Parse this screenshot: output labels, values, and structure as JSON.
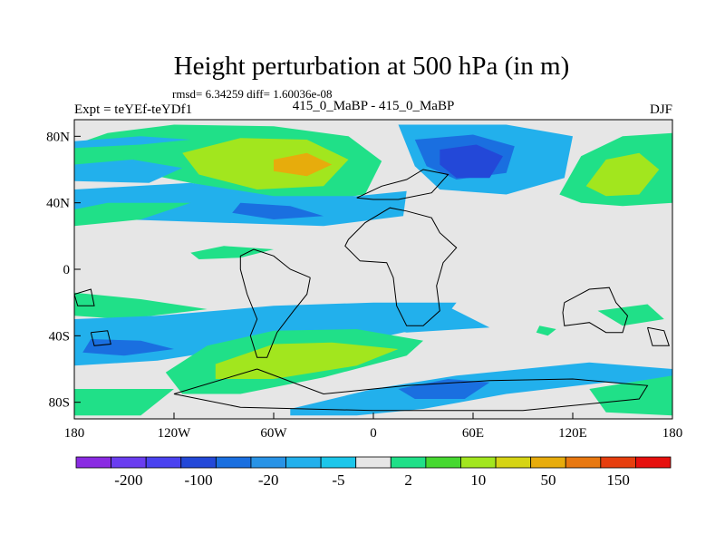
{
  "chart_data": {
    "type": "heatmap",
    "title": "Height perturbation at 500 hPa (in m)",
    "subtitle": "rmsd= 6.34259  diff= 1.60036e-08",
    "left_label": "Expt = teYEf-teYDf1",
    "center_label": "415_0_MaBP - 415_0_MaBP",
    "right_label": "DJF",
    "xlim": [
      -180,
      180
    ],
    "ylim": [
      -90,
      90
    ],
    "x_ticks": [
      {
        "value": -180,
        "label": "180"
      },
      {
        "value": -120,
        "label": "120W"
      },
      {
        "value": -60,
        "label": "60W"
      },
      {
        "value": 0,
        "label": "0"
      },
      {
        "value": 60,
        "label": "60E"
      },
      {
        "value": 120,
        "label": "120E"
      },
      {
        "value": 180,
        "label": "180"
      }
    ],
    "y_ticks": [
      {
        "value": 80,
        "label": "80N"
      },
      {
        "value": 40,
        "label": "40N"
      },
      {
        "value": 0,
        "label": "0"
      },
      {
        "value": -40,
        "label": "40S"
      },
      {
        "value": -80,
        "label": "80S"
      }
    ],
    "colorbar": {
      "colors": [
        "#8a2be2",
        "#6a3df0",
        "#4a42f0",
        "#2348d8",
        "#1a6fe0",
        "#2893e6",
        "#22b0ec",
        "#1cc6ea",
        "#e6e6e6",
        "#20e088",
        "#46d830",
        "#a2e61e",
        "#d6d414",
        "#e7ac0c",
        "#e87810",
        "#e63e0e",
        "#e6100e"
      ],
      "labels": [
        "-200",
        "-100",
        "-20",
        "-5",
        "2",
        "10",
        "50",
        "150"
      ]
    },
    "regions": [
      {
        "level": 10,
        "points": [
          [
            -180,
            75
          ],
          [
            -160,
            82
          ],
          [
            -120,
            87
          ],
          [
            -60,
            86
          ],
          [
            -15,
            80
          ],
          [
            5,
            65
          ],
          [
            -5,
            45
          ],
          [
            -40,
            40
          ],
          [
            -90,
            48
          ],
          [
            -140,
            58
          ],
          [
            -180,
            60
          ]
        ]
      },
      {
        "level": 50,
        "points": [
          [
            -115,
            70
          ],
          [
            -80,
            79
          ],
          [
            -40,
            78
          ],
          [
            -15,
            66
          ],
          [
            -30,
            50
          ],
          [
            -70,
            48
          ],
          [
            -105,
            57
          ]
        ]
      },
      {
        "level": 150,
        "points": [
          [
            -60,
            66
          ],
          [
            -40,
            70
          ],
          [
            -25,
            63
          ],
          [
            -40,
            56
          ],
          [
            -60,
            59
          ]
        ]
      },
      {
        "level": -5,
        "points": [
          [
            -180,
            63
          ],
          [
            -145,
            66
          ],
          [
            -115,
            61
          ],
          [
            -135,
            52
          ],
          [
            -180,
            53
          ]
        ]
      },
      {
        "level": -5,
        "points": [
          [
            -180,
            48
          ],
          [
            -110,
            52
          ],
          [
            -60,
            44
          ],
          [
            -10,
            44
          ],
          [
            20,
            47
          ],
          [
            18,
            32
          ],
          [
            -30,
            26
          ],
          [
            -90,
            28
          ],
          [
            -150,
            30
          ],
          [
            -180,
            35
          ]
        ]
      },
      {
        "level": -20,
        "points": [
          [
            -80,
            40
          ],
          [
            -50,
            38
          ],
          [
            -30,
            32
          ],
          [
            -60,
            30
          ],
          [
            -85,
            34
          ]
        ]
      },
      {
        "level": 10,
        "points": [
          [
            -180,
            36
          ],
          [
            -160,
            40
          ],
          [
            -110,
            40
          ],
          [
            -140,
            30
          ],
          [
            -180,
            26
          ]
        ]
      },
      {
        "level": -5,
        "points": [
          [
            15,
            87
          ],
          [
            80,
            87
          ],
          [
            120,
            80
          ],
          [
            115,
            55
          ],
          [
            80,
            45
          ],
          [
            40,
            48
          ],
          [
            25,
            62
          ]
        ]
      },
      {
        "level": -20,
        "points": [
          [
            25,
            78
          ],
          [
            60,
            81
          ],
          [
            85,
            74
          ],
          [
            80,
            58
          ],
          [
            50,
            54
          ],
          [
            32,
            62
          ]
        ]
      },
      {
        "level": -100,
        "points": [
          [
            40,
            72
          ],
          [
            62,
            75
          ],
          [
            78,
            68
          ],
          [
            70,
            55
          ],
          [
            50,
            55
          ],
          [
            40,
            63
          ]
        ]
      },
      {
        "level": 10,
        "points": [
          [
            112,
            45
          ],
          [
            125,
            68
          ],
          [
            150,
            80
          ],
          [
            180,
            82
          ],
          [
            180,
            40
          ],
          [
            150,
            38
          ],
          [
            125,
            40
          ]
        ]
      },
      {
        "level": 50,
        "points": [
          [
            128,
            50
          ],
          [
            140,
            66
          ],
          [
            160,
            70
          ],
          [
            172,
            60
          ],
          [
            160,
            45
          ],
          [
            140,
            44
          ]
        ]
      },
      {
        "level": -5,
        "points": [
          [
            -180,
            77
          ],
          [
            -140,
            80
          ],
          [
            -110,
            78
          ],
          [
            -140,
            75
          ],
          [
            -180,
            73
          ]
        ]
      },
      {
        "level": 10,
        "points": [
          [
            -110,
            10
          ],
          [
            -90,
            14
          ],
          [
            -60,
            12
          ],
          [
            -80,
            7
          ],
          [
            -105,
            6
          ]
        ]
      },
      {
        "level": 10,
        "points": [
          [
            -180,
            -14
          ],
          [
            -140,
            -18
          ],
          [
            -100,
            -24
          ],
          [
            -150,
            -30
          ],
          [
            -180,
            -28
          ]
        ]
      },
      {
        "level": -5,
        "points": [
          [
            -180,
            -30
          ],
          [
            -130,
            -28
          ],
          [
            -60,
            -22
          ],
          [
            0,
            -20
          ],
          [
            50,
            -20
          ],
          [
            40,
            -33
          ],
          [
            0,
            -42
          ],
          [
            -60,
            -44
          ],
          [
            -130,
            -55
          ],
          [
            -180,
            -58
          ]
        ]
      },
      {
        "level": -20,
        "points": [
          [
            -170,
            -42
          ],
          [
            -140,
            -43
          ],
          [
            -120,
            -48
          ],
          [
            -150,
            -52
          ],
          [
            -175,
            -50
          ]
        ]
      },
      {
        "level": -5,
        "points": [
          [
            -8,
            -24
          ],
          [
            40,
            -20
          ],
          [
            70,
            -35
          ],
          [
            20,
            -38
          ],
          [
            -10,
            -32
          ]
        ]
      },
      {
        "level": 10,
        "points": [
          [
            -125,
            -62
          ],
          [
            -100,
            -46
          ],
          [
            -60,
            -37
          ],
          [
            -10,
            -36
          ],
          [
            30,
            -43
          ],
          [
            20,
            -52
          ],
          [
            -30,
            -65
          ],
          [
            -80,
            -75
          ],
          [
            -115,
            -75
          ]
        ]
      },
      {
        "level": 50,
        "points": [
          [
            -95,
            -57
          ],
          [
            -60,
            -45
          ],
          [
            -25,
            -44
          ],
          [
            15,
            -48
          ],
          [
            -10,
            -58
          ],
          [
            -60,
            -66
          ],
          [
            -95,
            -66
          ]
        ]
      },
      {
        "level": 10,
        "points": [
          [
            -180,
            -72
          ],
          [
            -120,
            -72
          ],
          [
            -140,
            -88
          ],
          [
            -180,
            -88
          ]
        ]
      },
      {
        "level": -5,
        "points": [
          [
            -50,
            -84
          ],
          [
            0,
            -72
          ],
          [
            50,
            -64
          ],
          [
            90,
            -60
          ],
          [
            130,
            -56
          ],
          [
            180,
            -60
          ],
          [
            180,
            -72
          ],
          [
            140,
            -68
          ],
          [
            80,
            -75
          ],
          [
            30,
            -84
          ],
          [
            -10,
            -88
          ],
          [
            -50,
            -88
          ]
        ]
      },
      {
        "level": -20,
        "points": [
          [
            15,
            -72
          ],
          [
            45,
            -66
          ],
          [
            70,
            -68
          ],
          [
            55,
            -78
          ],
          [
            25,
            -78
          ]
        ]
      },
      {
        "level": 10,
        "points": [
          [
            130,
            -72
          ],
          [
            180,
            -64
          ],
          [
            180,
            -88
          ],
          [
            140,
            -86
          ]
        ]
      },
      {
        "level": 10,
        "points": [
          [
            135,
            -25
          ],
          [
            165,
            -21
          ],
          [
            175,
            -30
          ],
          [
            150,
            -34
          ]
        ]
      },
      {
        "level": 10,
        "points": [
          [
            100,
            -34
          ],
          [
            110,
            -36
          ],
          [
            105,
            -40
          ],
          [
            98,
            -38
          ]
        ]
      }
    ],
    "coastlines": [
      [
        [
          -15,
          18
        ],
        [
          -5,
          28
        ],
        [
          10,
          37
        ],
        [
          20,
          35
        ],
        [
          35,
          31
        ],
        [
          40,
          22
        ],
        [
          50,
          13
        ],
        [
          42,
          4
        ],
        [
          38,
          -10
        ],
        [
          40,
          -25
        ],
        [
          30,
          -34
        ],
        [
          20,
          -34
        ],
        [
          14,
          -22
        ],
        [
          12,
          -5
        ],
        [
          8,
          4
        ],
        [
          -8,
          5
        ],
        [
          -17,
          14
        ],
        [
          -15,
          18
        ]
      ],
      [
        [
          -38,
          -5
        ],
        [
          -50,
          0
        ],
        [
          -60,
          8
        ],
        [
          -72,
          12
        ],
        [
          -80,
          8
        ],
        [
          -80,
          0
        ],
        [
          -76,
          -15
        ],
        [
          -70,
          -30
        ],
        [
          -74,
          -40
        ],
        [
          -70,
          -53
        ],
        [
          -64,
          -53
        ],
        [
          -58,
          -38
        ],
        [
          -48,
          -25
        ],
        [
          -40,
          -15
        ],
        [
          -38,
          -5
        ]
      ],
      [
        [
          115,
          -20
        ],
        [
          130,
          -12
        ],
        [
          142,
          -11
        ],
        [
          146,
          -20
        ],
        [
          153,
          -28
        ],
        [
          150,
          -38
        ],
        [
          140,
          -38
        ],
        [
          130,
          -32
        ],
        [
          115,
          -34
        ],
        [
          114,
          -26
        ],
        [
          115,
          -20
        ]
      ],
      [
        [
          -10,
          43
        ],
        [
          5,
          50
        ],
        [
          20,
          54
        ],
        [
          30,
          60
        ],
        [
          45,
          57
        ],
        [
          35,
          46
        ],
        [
          15,
          42
        ],
        [
          0,
          42
        ],
        [
          -10,
          43
        ]
      ],
      [
        [
          -70,
          -60
        ],
        [
          -30,
          -75
        ],
        [
          20,
          -70
        ],
        [
          70,
          -67
        ],
        [
          120,
          -66
        ],
        [
          165,
          -70
        ],
        [
          160,
          -78
        ],
        [
          90,
          -85
        ],
        [
          0,
          -85
        ],
        [
          -80,
          -83
        ],
        [
          -120,
          -75
        ],
        [
          -70,
          -60
        ]
      ],
      [
        [
          -170,
          -38
        ],
        [
          -160,
          -37
        ],
        [
          -158,
          -45
        ],
        [
          -168,
          -46
        ],
        [
          -170,
          -38
        ]
      ],
      [
        [
          165,
          -35
        ],
        [
          175,
          -37
        ],
        [
          178,
          -46
        ],
        [
          168,
          -46
        ],
        [
          165,
          -35
        ]
      ],
      [
        [
          -180,
          -15
        ],
        [
          -170,
          -12
        ],
        [
          -168,
          -22
        ],
        [
          -178,
          -22
        ],
        [
          -180,
          -15
        ]
      ]
    ]
  }
}
